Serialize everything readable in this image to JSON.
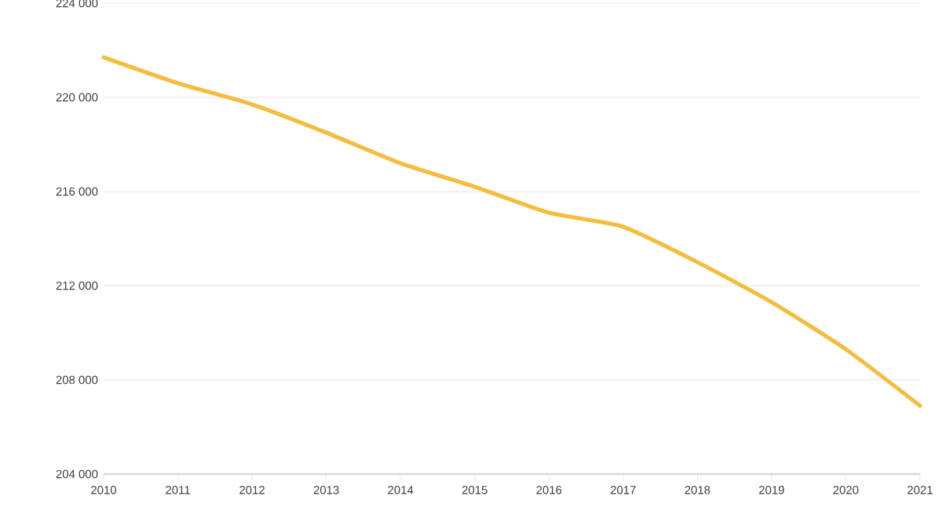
{
  "chart_data": {
    "type": "line",
    "x": [
      2010,
      2011,
      2012,
      2013,
      2014,
      2015,
      2016,
      2017,
      2018,
      2019,
      2020,
      2021
    ],
    "series": [
      {
        "color": "#f4bd3f",
        "values": [
          221700,
          220600,
          219700,
          218500,
          217200,
          216200,
          215100,
          214500,
          213000,
          211300,
          209300,
          206900
        ]
      }
    ],
    "xlim": [
      2010,
      2021
    ],
    "xticks": [
      2010,
      2011,
      2012,
      2013,
      2014,
      2015,
      2016,
      2017,
      2018,
      2019,
      2020,
      2021
    ],
    "ylim": [
      204000,
      224000
    ],
    "yticks": [
      {
        "value": 204000,
        "label": "204 000"
      },
      {
        "value": 208000,
        "label": "208 000"
      },
      {
        "value": 212000,
        "label": "212 000"
      },
      {
        "value": 216000,
        "label": "216 000"
      },
      {
        "value": 220000,
        "label": "220 000"
      },
      {
        "value": 224000,
        "label": "224 000"
      }
    ],
    "grid": "y",
    "marker": "none",
    "line_style": "solid"
  }
}
